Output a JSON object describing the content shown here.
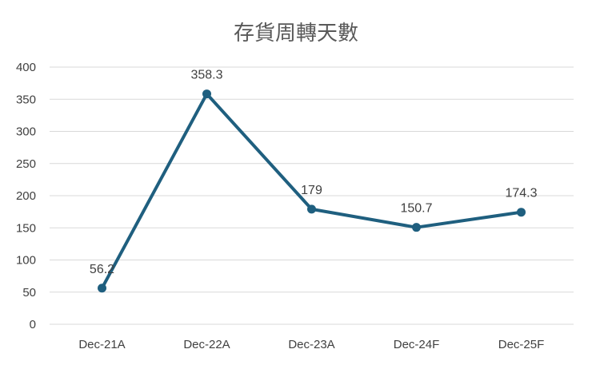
{
  "chart_data": {
    "type": "line",
    "title": "存貨周轉天數",
    "categories": [
      "Dec-21A",
      "Dec-22A",
      "Dec-23A",
      "Dec-24F",
      "Dec-25F"
    ],
    "series": [
      {
        "values": [
          56.2,
          358.3,
          179,
          150.7,
          174.3
        ],
        "labels": [
          "56.2",
          "358.3",
          "179",
          "150.7",
          "174.3"
        ]
      }
    ],
    "yticks": [
      "0",
      "50",
      "100",
      "150",
      "200",
      "250",
      "300",
      "350",
      "400"
    ],
    "ylim": [
      0,
      400
    ],
    "grid": true,
    "legend": "none",
    "line_color": "#1f5f7f"
  }
}
